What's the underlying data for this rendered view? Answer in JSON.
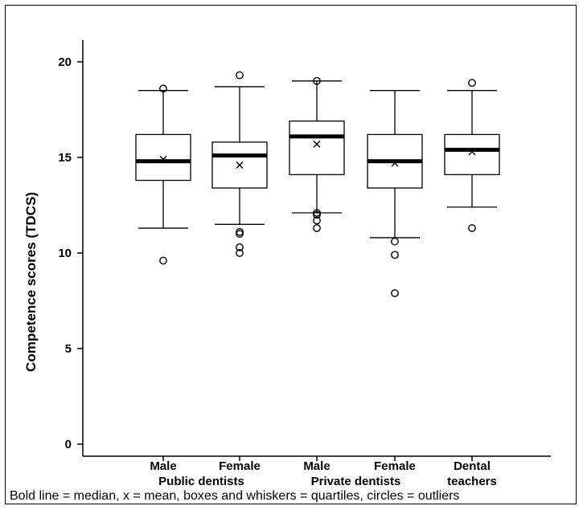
{
  "chart_data": {
    "type": "boxplot",
    "ylabel": "Competence scores (TDCS)",
    "ylim": [
      0,
      20
    ],
    "yticks": [
      0,
      5,
      10,
      15,
      20
    ],
    "categories": [
      "Male",
      "Female",
      "Male",
      "Female",
      "Dental"
    ],
    "category_line2": [
      "",
      "",
      "",
      "",
      "teachers"
    ],
    "groups": [
      "Public dentists",
      "Private dentists"
    ],
    "boxes": [
      {
        "label": "Male",
        "group": "Public dentists",
        "whisker_low": 11.3,
        "q1": 13.8,
        "median": 14.8,
        "q3": 16.2,
        "whisker_high": 18.5,
        "mean": 14.9,
        "outliers": [
          18.6,
          9.6
        ]
      },
      {
        "label": "Female",
        "group": "Public dentists",
        "whisker_low": 11.5,
        "q1": 13.4,
        "median": 15.1,
        "q3": 15.8,
        "whisker_high": 18.7,
        "mean": 14.6,
        "outliers": [
          19.3,
          11.1,
          11.0,
          10.3,
          10.0
        ]
      },
      {
        "label": "Male",
        "group": "Private dentists",
        "whisker_low": 12.1,
        "q1": 14.1,
        "median": 16.1,
        "q3": 16.9,
        "whisker_high": 19.0,
        "mean": 15.7,
        "outliers": [
          19.0,
          12.1,
          12.0,
          11.7,
          11.3
        ]
      },
      {
        "label": "Female",
        "group": "Private dentists",
        "whisker_low": 10.8,
        "q1": 13.4,
        "median": 14.8,
        "q3": 16.2,
        "whisker_high": 18.5,
        "mean": 14.7,
        "outliers": [
          10.6,
          9.9,
          7.9
        ]
      },
      {
        "label": "Dental teachers",
        "group": "",
        "whisker_low": 12.4,
        "q1": 14.1,
        "median": 15.4,
        "q3": 16.2,
        "whisker_high": 18.5,
        "mean": 15.3,
        "outliers": [
          18.9,
          11.3
        ]
      }
    ],
    "caption": "Bold line = median,  x = mean,  boxes and whiskers = quartiles,  circles = outliers"
  }
}
